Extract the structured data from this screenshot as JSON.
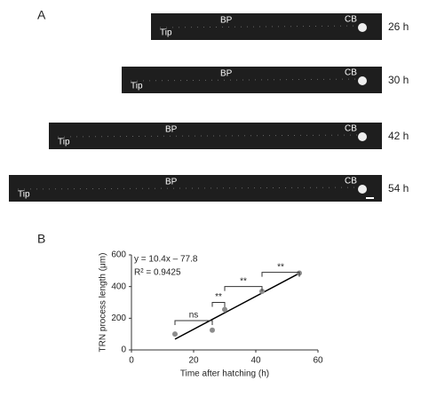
{
  "panel_a": {
    "label": "A",
    "rows": [
      {
        "tip": "Tip",
        "bp": "BP",
        "cb": "CB",
        "time": "26 h"
      },
      {
        "tip": "Tip",
        "bp": "BP",
        "cb": "CB",
        "time": "30 h"
      },
      {
        "tip": "Tip",
        "bp": "BP",
        "cb": "CB",
        "time": "42 h"
      },
      {
        "tip": "Tip",
        "bp": "BP",
        "cb": "CB",
        "time": "54 h"
      }
    ]
  },
  "panel_b_label": "B",
  "chart_data": {
    "type": "scatter",
    "x_label": "Time after hatching (h)",
    "y_label": "TRN process length (μm)",
    "x": [
      14,
      26,
      30,
      42,
      54
    ],
    "values": [
      100,
      125,
      255,
      370,
      485
    ],
    "errors": [
      5,
      8,
      20,
      10,
      8
    ],
    "color": "#8c8c8c",
    "fit": {
      "x": [
        14,
        54
      ],
      "values": [
        68,
        484
      ],
      "color": "#000000"
    },
    "equation": "y = 10.4x – 77.8",
    "r_squared": "R² = 0.9425",
    "annotations": [
      {
        "text": "ns",
        "x": [
          14,
          26
        ]
      },
      {
        "text": "**",
        "x": [
          26,
          30
        ]
      },
      {
        "text": "**",
        "x": [
          30,
          42
        ]
      },
      {
        "text": "**",
        "x": [
          42,
          54
        ]
      }
    ],
    "xlim": [
      0,
      60
    ],
    "xticks": [
      0,
      20,
      40,
      60
    ],
    "ylim": [
      0,
      600
    ],
    "yticks": [
      0,
      200,
      400,
      600
    ]
  }
}
